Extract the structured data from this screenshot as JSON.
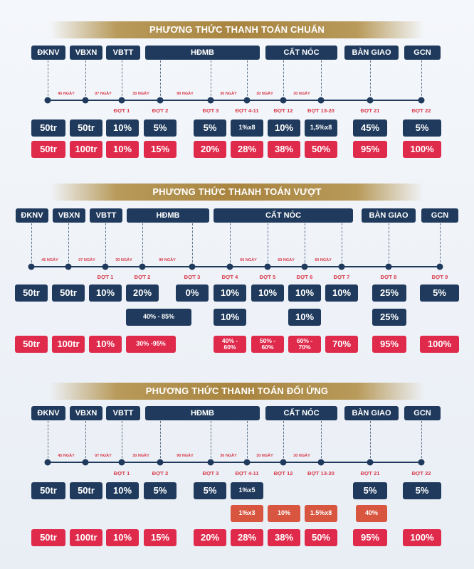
{
  "sections": [
    {
      "title": "PHƯƠNG THỨC THANH TOÁN CHUẨN",
      "phases": [
        "ĐKNV",
        "VBXN",
        "VBTT",
        "HĐMB",
        "CẤT NÓC",
        "BÀN GIAO",
        "GCN"
      ],
      "gaps": [
        "45 NGÀY",
        "07 NGÀY",
        "30 NGÀY",
        "90 NGÀY",
        "30 NGÀY",
        "30 NGÀY",
        "30 NGÀY"
      ],
      "dots": [
        "ĐỢT 1",
        "ĐỢT 2",
        "ĐỢT 3",
        "ĐỢT 4-11",
        "ĐỢT 12",
        "ĐỢT 13-20",
        "ĐỢT 21",
        "ĐỢT 22"
      ],
      "row1": [
        "50tr",
        "50tr",
        "10%",
        "5%",
        "5%",
        "1%x8",
        "10%",
        "1,5%x8",
        "45%",
        "5%"
      ],
      "row2": [
        "50tr",
        "100tr",
        "10%",
        "15%",
        "20%",
        "28%",
        "38%",
        "50%",
        "95%",
        "100%"
      ]
    },
    {
      "title": "PHƯƠNG THỨC THANH TOÁN VƯỢT",
      "phases": [
        "ĐKNV",
        "VBXN",
        "VBTT",
        "HĐMB",
        "CẤT NÓC",
        "BÀN GIAO",
        "GCN"
      ],
      "gaps": [
        "45 NGÀY",
        "07 NGÀY",
        "30 NGÀY",
        "90 NGÀY",
        "60 NGÀY",
        "60 NGÀY",
        "60 NGÀY"
      ],
      "dots": [
        "ĐỢT 1",
        "ĐỢT 2",
        "ĐỢT 3",
        "ĐỢT 4",
        "ĐỢT 5",
        "ĐỢT 6",
        "ĐỢT 7",
        "ĐỢT 8",
        "ĐỢT 9"
      ],
      "row1": [
        "50tr",
        "50tr",
        "10%",
        "20%",
        "0%",
        "10%",
        "10%",
        "10%",
        "10%",
        "25%",
        "5%"
      ],
      "row2": [
        "40% - 85%",
        "10%",
        "10%",
        "25%"
      ],
      "row3": [
        "50tr",
        "100tr",
        "10%",
        "30% -95%",
        "40% -\n60%",
        "50% -\n60%",
        "60% -\n70%",
        "70%",
        "95%",
        "100%"
      ]
    },
    {
      "title": "PHƯƠNG THỨC THANH TOÁN ĐỐI ỨNG",
      "phases": [
        "ĐKNV",
        "VBXN",
        "VBTT",
        "HĐMB",
        "CẤT NÓC",
        "BÀN GIAO",
        "GCN"
      ],
      "gaps": [
        "45 NGÀY",
        "07 NGÀY",
        "30 NGÀY",
        "90 NGÀY",
        "30 NGÀY",
        "30 NGÀY",
        "30 NGÀY"
      ],
      "dots": [
        "ĐỢT 1",
        "ĐỢT 2",
        "ĐỢT 3",
        "ĐỢT 4-11",
        "ĐỢT 12",
        "ĐỢT 13-20",
        "ĐỢT 21",
        "ĐỢT 22"
      ],
      "row1": [
        "50tr",
        "50tr",
        "10%",
        "5%",
        "5%",
        "1%x5",
        "5%",
        "5%"
      ],
      "row2": [
        "1%x3",
        "10%",
        "1.5%x8",
        "40%"
      ],
      "row3": [
        "50tr",
        "100tr",
        "10%",
        "15%",
        "20%",
        "28%",
        "38%",
        "50%",
        "95%",
        "100%"
      ]
    }
  ],
  "colors": {
    "navy": "#1f3a5c",
    "red": "#e02a4c",
    "rust": "#d8553f",
    "gold": "#a8843f"
  }
}
